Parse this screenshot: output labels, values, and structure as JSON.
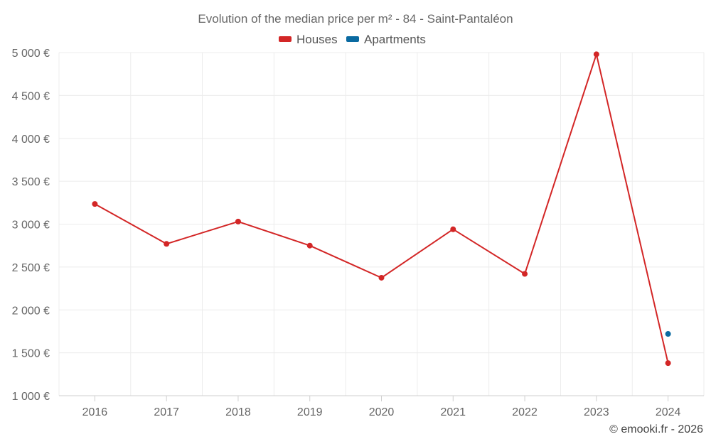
{
  "chart_data": {
    "type": "line",
    "title": "Evolution of the median price per m² - 84 - Saint-Pantaléon",
    "categories": [
      "2016",
      "2017",
      "2018",
      "2019",
      "2020",
      "2021",
      "2022",
      "2023",
      "2024"
    ],
    "ylim": [
      1000,
      5000
    ],
    "y_ticks": [
      1000,
      1500,
      2000,
      2500,
      3000,
      3500,
      4000,
      4500,
      5000
    ],
    "y_tick_labels": [
      "1 000 €",
      "1 500 €",
      "2 000 €",
      "2 500 €",
      "3 000 €",
      "3 500 €",
      "4 000 €",
      "4 500 €",
      "5 000 €"
    ],
    "grid": true,
    "legend_position": "top-center",
    "series": [
      {
        "name": "Houses",
        "color": "#d32626",
        "values": [
          3235,
          2770,
          3030,
          2750,
          2375,
          2940,
          2420,
          4980,
          1380
        ]
      },
      {
        "name": "Apartments",
        "color": "#0a6aa1",
        "values": [
          null,
          null,
          null,
          null,
          null,
          null,
          null,
          null,
          1720
        ]
      }
    ],
    "credit": "© emooki.fr - 2026"
  }
}
